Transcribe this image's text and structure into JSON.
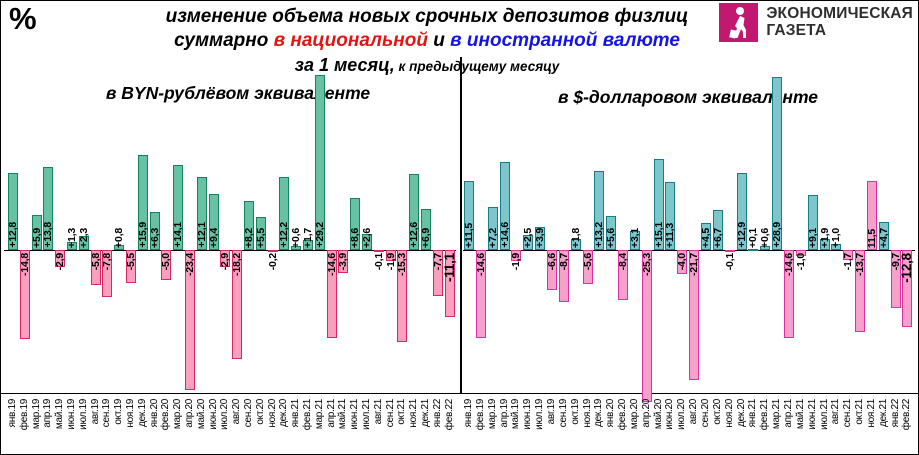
{
  "header": {
    "percent_symbol": "%",
    "title_line1": "изменение объема новых срочных депозитов физлиц",
    "title_line2_prefix": "суммарно ",
    "title_line2_red": "в национальной",
    "title_line2_mid": " и ",
    "title_line2_blue": "в иностранной валюте",
    "title_line3_main": "за 1 месяц,",
    "title_line3_small": " к предыдущему месяцу",
    "logo": {
      "line1": "ЭКОНОМИЧЕСКАЯ",
      "line2": "ГАЗЕТА"
    }
  },
  "colors": {
    "title_red": "#e01616",
    "title_blue": "#1414e6",
    "logo_magenta": "#c2186f",
    "byn_positive_fill": "#66c2a2",
    "byn_positive_border": "#17825a",
    "byn_negative_fill": "#fa9fbe",
    "byn_negative_border": "#d72864",
    "usd_positive_fill": "#7dc6cb",
    "usd_positive_border": "#147d87",
    "usd_negative_fill": "#f8a0cd",
    "usd_negative_border": "#dc32a0"
  },
  "chart_data": [
    {
      "type": "bar",
      "title": "в BYN-рублёвом эквиваленте",
      "unit": "%",
      "ylim": [
        -26,
        30
      ],
      "grid": false,
      "legend": "none",
      "categories": [
        "янв.19",
        "фев.19",
        "мар.19",
        "апр.19",
        "май.19",
        "июн.19",
        "июл.19",
        "авг.19",
        "сен.19",
        "окт.19",
        "ноя.19",
        "дек.19",
        "янв.20",
        "фев.20",
        "мар.20",
        "апр.20",
        "май.20",
        "июн.20",
        "июл.20",
        "авг.20",
        "сен.20",
        "окт.20",
        "ноя.20",
        "дек.20",
        "янв.21",
        "фев.21",
        "мар.21",
        "апр.21",
        "май.21",
        "июн.21",
        "июл.21",
        "авг.21",
        "сен.21",
        "окт.21",
        "ноя.21",
        "дек.21",
        "янв.22",
        "фев.22"
      ],
      "values": [
        12.8,
        -14.8,
        5.9,
        13.8,
        -2.9,
        1.3,
        2.3,
        -5.8,
        -7.8,
        0.8,
        -5.5,
        15.9,
        6.3,
        -5.0,
        14.1,
        -23.4,
        12.1,
        9.4,
        -2.9,
        -18.2,
        8.2,
        5.5,
        -0.2,
        12.2,
        0.6,
        1.7,
        29.2,
        -14.6,
        -3.9,
        8.6,
        2.6,
        -0.1,
        -1.9,
        -15.3,
        12.6,
        6.9,
        -7.7,
        -11.1
      ],
      "labels": [
        "+12,8",
        "-14,8",
        "+5,9",
        "+13,8",
        "-2,9",
        "+1,3",
        "+2,3",
        "-5,8",
        "-7,8",
        "+0,8",
        "-5,5",
        "+15,9",
        "+6,3",
        "-5,0",
        "+14,1",
        "-23,4",
        "+12,1",
        "+9,4",
        "-2,9",
        "-18,2",
        "+8,2",
        "+5,5",
        "-0,2",
        "+12,2",
        "+0,6",
        "+1,7",
        "+29,2",
        "-14,6",
        "-3,9",
        "+8,6",
        "+2,6",
        "-0,1",
        "-1,9",
        "-15,3",
        "+12,6",
        "+6,9",
        "-7,7",
        "-11,1"
      ],
      "pink_positive_indices": [],
      "emphasize_last": true
    },
    {
      "type": "bar",
      "title": "в $-долларовом эквиваленте",
      "unit": "%",
      "ylim": [
        -26,
        30
      ],
      "grid": false,
      "legend": "none",
      "categories": [
        "янв.19",
        "фев.19",
        "мар.19",
        "апр.19",
        "май.19",
        "июн.19",
        "июл.19",
        "авг.19",
        "сен.19",
        "окт.19",
        "ноя.19",
        "дек.19",
        "янв.20",
        "фев.20",
        "мар.20",
        "апр.20",
        "май.20",
        "июн.20",
        "июл.20",
        "авг.20",
        "сен.20",
        "окт.20",
        "ноя.20",
        "дек.20",
        "янв.21",
        "фев.21",
        "мар.21",
        "апр.21",
        "май.21",
        "июн.21",
        "июл.21",
        "авг.21",
        "сен.21",
        "окт.21",
        "ноя.21",
        "дек.21",
        "янв.22",
        "фев.22"
      ],
      "values": [
        11.5,
        -14.6,
        7.2,
        14.6,
        -1.9,
        2.5,
        3.9,
        -6.6,
        -8.7,
        1.8,
        -5.6,
        13.2,
        5.6,
        -8.4,
        3.1,
        -25.3,
        15.1,
        11.3,
        -4.0,
        -21.7,
        4.5,
        6.7,
        -0.1,
        12.9,
        0.1,
        0.6,
        28.9,
        -14.6,
        -1.0,
        9.1,
        1.9,
        1.0,
        -1.7,
        -13.7,
        11.5,
        4.7,
        -9.7,
        -12.8
      ],
      "labels": [
        "+11,5",
        "-14,6",
        "+7,2",
        "+14,6",
        "-1,9",
        "+2,5",
        "+3,9",
        "-6,6",
        "-8,7",
        "+1,8",
        "-5,6",
        "+13,2",
        "+5,6",
        "-8,4",
        "+3,1",
        "-25,3",
        "+15,1",
        "+11,3",
        "-4,0",
        "-21,7",
        "+4,5",
        "+6,7",
        "-0,1",
        "+12,9",
        "+0,1",
        "+0,6",
        "+28,9",
        "-14,6",
        "-1,0",
        "+9,1",
        "+1,9",
        "+1,0",
        "-1,7",
        "-13,7",
        "11,5",
        "+4,7",
        "-9,7",
        "-12,8"
      ],
      "pink_positive_indices": [
        34
      ],
      "emphasize_last": true
    }
  ]
}
